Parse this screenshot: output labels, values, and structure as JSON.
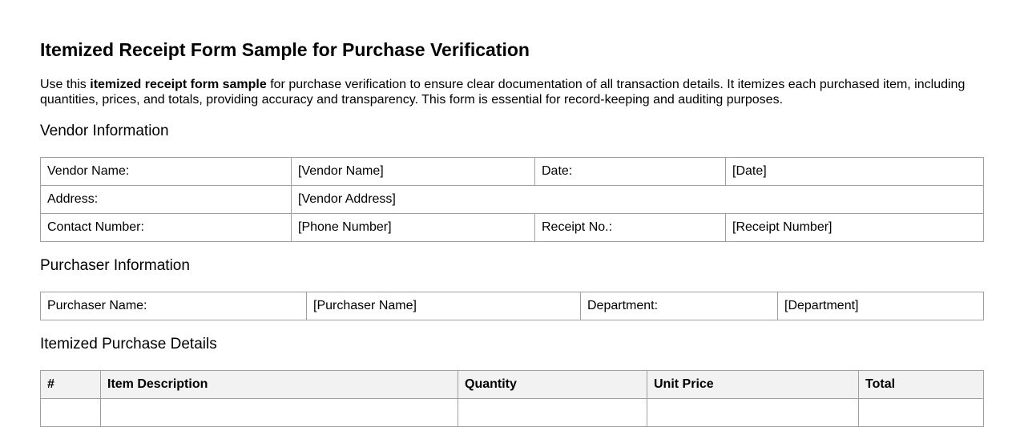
{
  "title": "Itemized Receipt Form Sample for Purchase Verification",
  "intro": {
    "before": "Use this ",
    "bold": "itemized receipt form sample",
    "after": " for purchase verification to ensure clear documentation of all transaction details. It itemizes each purchased item, including quantities, prices, and totals, providing accuracy and transparency. This form is essential for record-keeping and auditing purposes."
  },
  "vendor": {
    "heading": "Vendor Information",
    "name_label": "Vendor Name:",
    "name_value": "[Vendor Name]",
    "date_label": "Date:",
    "date_value": "[Date]",
    "address_label": "Address:",
    "address_value": "[Vendor Address]",
    "contact_label": "Contact Number:",
    "contact_value": "[Phone Number]",
    "receipt_label": "Receipt No.:",
    "receipt_value": "[Receipt Number]"
  },
  "purchaser": {
    "heading": "Purchaser Information",
    "name_label": "Purchaser Name:",
    "name_value": "[Purchaser Name]",
    "dept_label": "Department:",
    "dept_value": "[Department]"
  },
  "items": {
    "heading": "Itemized Purchase Details",
    "columns": [
      "#",
      "Item Description",
      "Quantity",
      "Unit Price",
      "Total"
    ]
  }
}
